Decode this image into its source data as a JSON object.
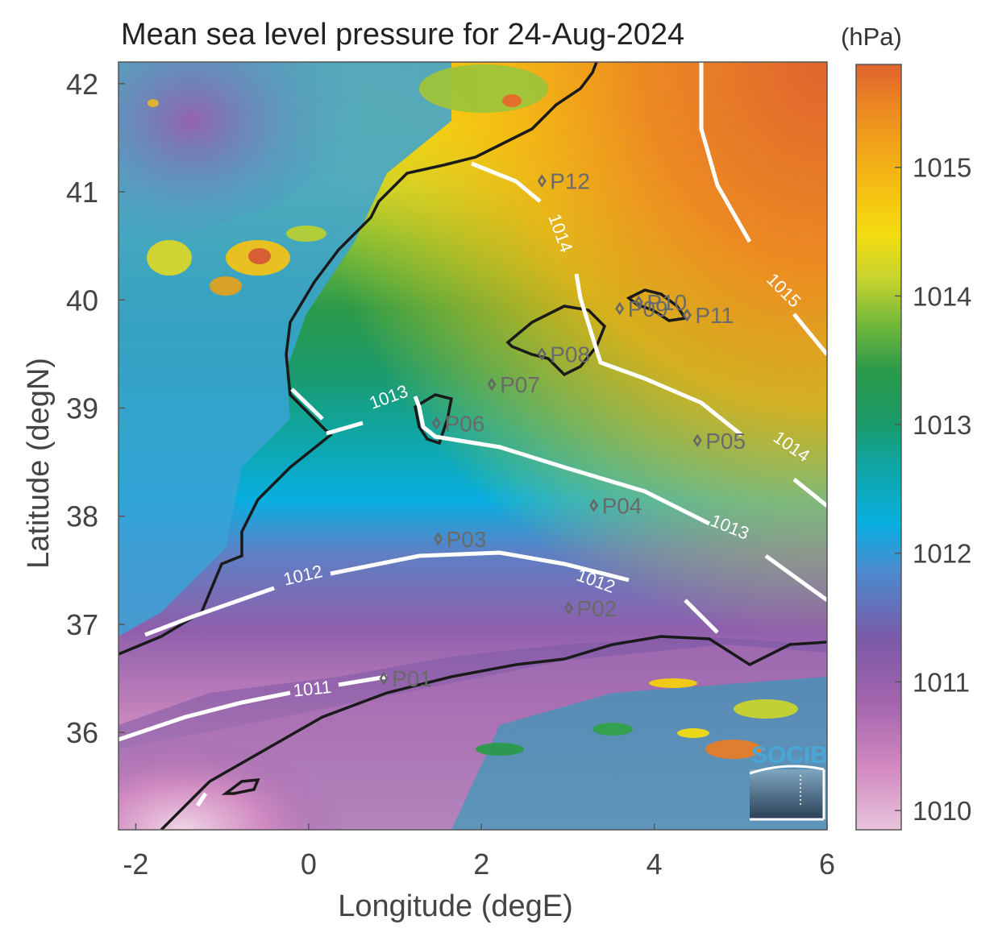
{
  "title": "Mean sea level pressure for 24-Aug-2024",
  "colorbar": {
    "unit": "(hPa)",
    "ticks": [
      "1010",
      "1011",
      "1012",
      "1013",
      "1014",
      "1015"
    ],
    "tick_values": [
      1010,
      1011,
      1012,
      1013,
      1014,
      1015
    ],
    "range": [
      1009.85,
      1015.8
    ],
    "colormap": [
      "#e8c4dc",
      "#d28ac0",
      "#a263ad",
      "#7a5aa8",
      "#4a8ccf",
      "#08aee0",
      "#10a5a0",
      "#1b9a6a",
      "#2b9a4a",
      "#72b83a",
      "#c8d42e",
      "#f4dc10",
      "#f4b414",
      "#ec8a22",
      "#e0642e"
    ]
  },
  "axes": {
    "xlabel": "Longitude (degE)",
    "ylabel": "Latitude (degN)",
    "xlim": [
      -2.2,
      6.0
    ],
    "ylim": [
      35.1,
      42.2
    ],
    "xticks": [
      "-2",
      "0",
      "2",
      "4",
      "6"
    ],
    "xtick_values": [
      -2,
      0,
      2,
      4,
      6
    ],
    "yticks": [
      "36",
      "37",
      "38",
      "39",
      "40",
      "41",
      "42"
    ],
    "ytick_values": [
      36,
      37,
      38,
      39,
      40,
      41,
      42
    ]
  },
  "contour_labels": [
    {
      "text": "1011",
      "lon": 0.05,
      "lat": 36.35,
      "angle": -6
    },
    {
      "text": "1012",
      "lon": -0.05,
      "lat": 37.4,
      "angle": -13
    },
    {
      "text": "1012",
      "lon": 3.3,
      "lat": 37.35,
      "angle": 20
    },
    {
      "text": "1013",
      "lon": 0.95,
      "lat": 39.05,
      "angle": -20
    },
    {
      "text": "1013",
      "lon": 4.85,
      "lat": 37.85,
      "angle": 22
    },
    {
      "text": "1014",
      "lon": 2.85,
      "lat": 40.6,
      "angle": 70
    },
    {
      "text": "1014",
      "lon": 5.55,
      "lat": 38.6,
      "angle": 35
    },
    {
      "text": "1015",
      "lon": 5.45,
      "lat": 40.05,
      "angle": 45
    }
  ],
  "points": [
    {
      "name": "P01",
      "lon": 0.87,
      "lat": 36.5
    },
    {
      "name": "P02",
      "lon": 3.01,
      "lat": 37.15
    },
    {
      "name": "P03",
      "lon": 1.5,
      "lat": 37.79
    },
    {
      "name": "P04",
      "lon": 3.3,
      "lat": 38.1
    },
    {
      "name": "P05",
      "lon": 4.5,
      "lat": 38.7
    },
    {
      "name": "P06",
      "lon": 1.48,
      "lat": 38.86
    },
    {
      "name": "P07",
      "lon": 2.12,
      "lat": 39.22
    },
    {
      "name": "P08",
      "lon": 2.7,
      "lat": 39.5
    },
    {
      "name": "P09",
      "lon": 3.6,
      "lat": 39.92
    },
    {
      "name": "P10",
      "lon": 3.82,
      "lat": 39.98
    },
    {
      "name": "P11",
      "lon": 4.38,
      "lat": 39.86
    },
    {
      "name": "P12",
      "lon": 2.7,
      "lat": 41.1
    }
  ],
  "logo": {
    "text": "SOCIB"
  }
}
